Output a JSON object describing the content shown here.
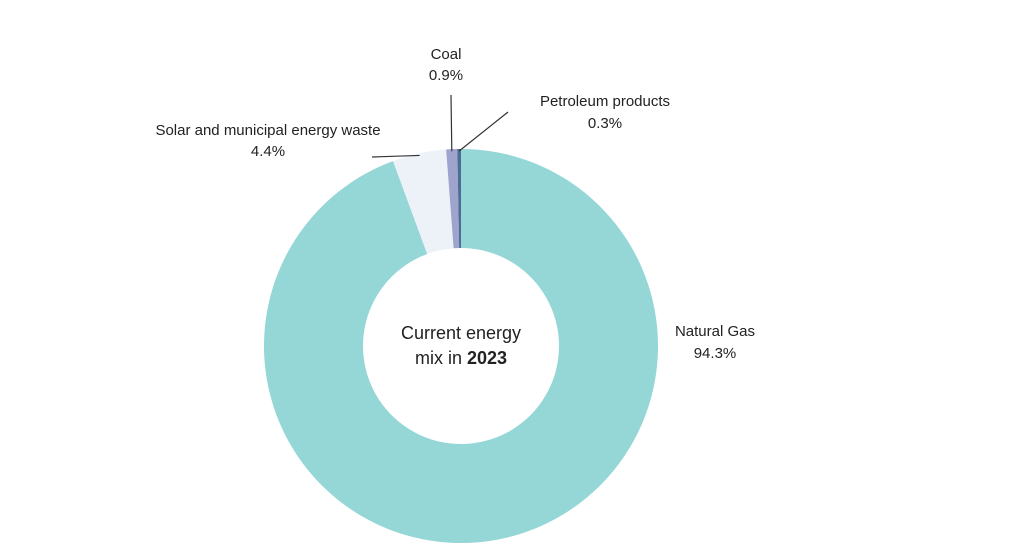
{
  "chart_data": {
    "type": "pie",
    "donut": true,
    "center_text": {
      "line1": "Current energy",
      "line2_prefix": "mix in ",
      "line2_bold": "2023"
    },
    "slices": [
      {
        "label": "Natural Gas",
        "value": 94.3,
        "value_label": "94.3%",
        "color": "#95d6d6"
      },
      {
        "label": "Solar and municipal energy waste",
        "value": 4.4,
        "value_label": "4.4%",
        "color": "#edf1f8"
      },
      {
        "label": "Coal",
        "value": 0.9,
        "value_label": "0.9%",
        "color": "#9fa4cc"
      },
      {
        "label": "Petroleum products",
        "value": 0.3,
        "value_label": "0.3%",
        "color": "#4f6c94"
      }
    ]
  }
}
